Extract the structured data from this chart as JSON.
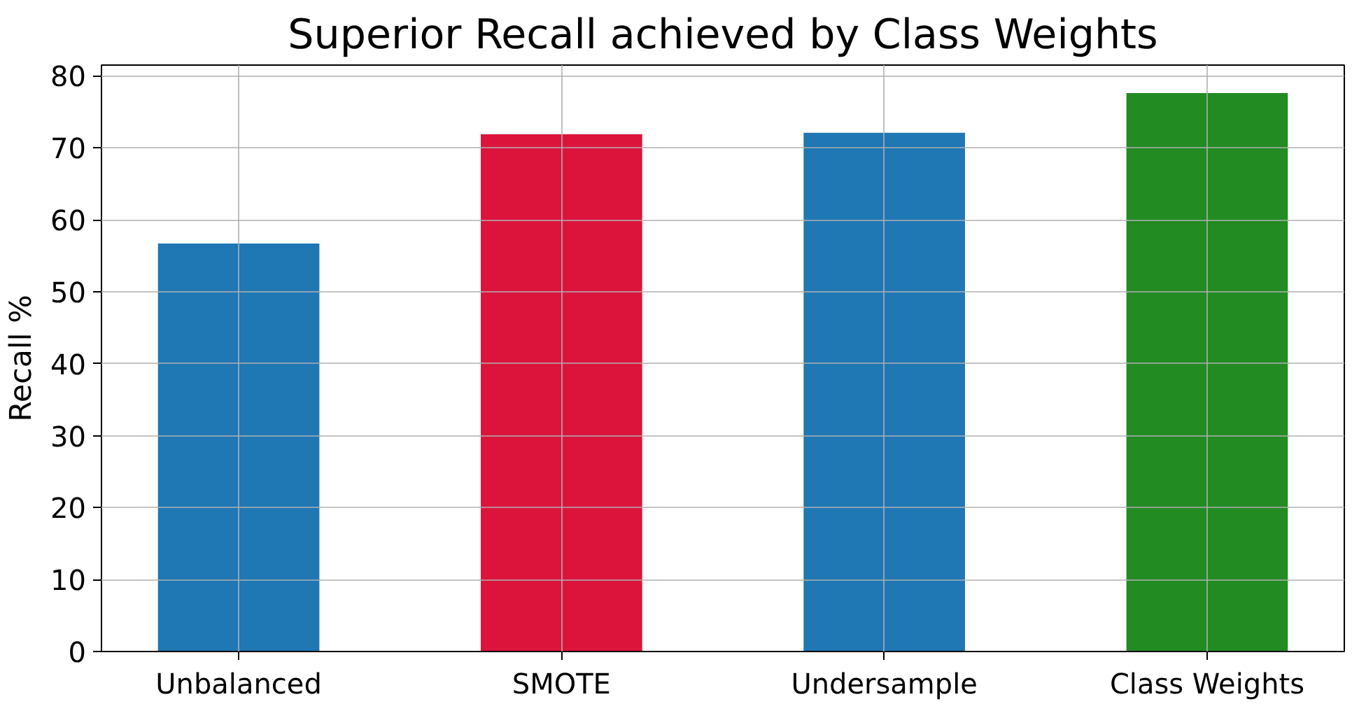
{
  "chart_data": {
    "type": "bar",
    "title": "Superior Recall achieved by Class Weights",
    "ylabel": "Recall %",
    "categories": [
      "Unbalanced",
      "SMOTE",
      "Undersample",
      "Class Weights"
    ],
    "values": [
      56.7,
      71.9,
      72.1,
      77.6
    ],
    "colors": [
      "#1f77b4",
      "#dc143c",
      "#1f77b4",
      "#228b22"
    ],
    "ylim": [
      0,
      81.5
    ],
    "yticks": [
      0,
      10,
      20,
      30,
      40,
      50,
      60,
      70,
      80
    ],
    "grid": true
  }
}
